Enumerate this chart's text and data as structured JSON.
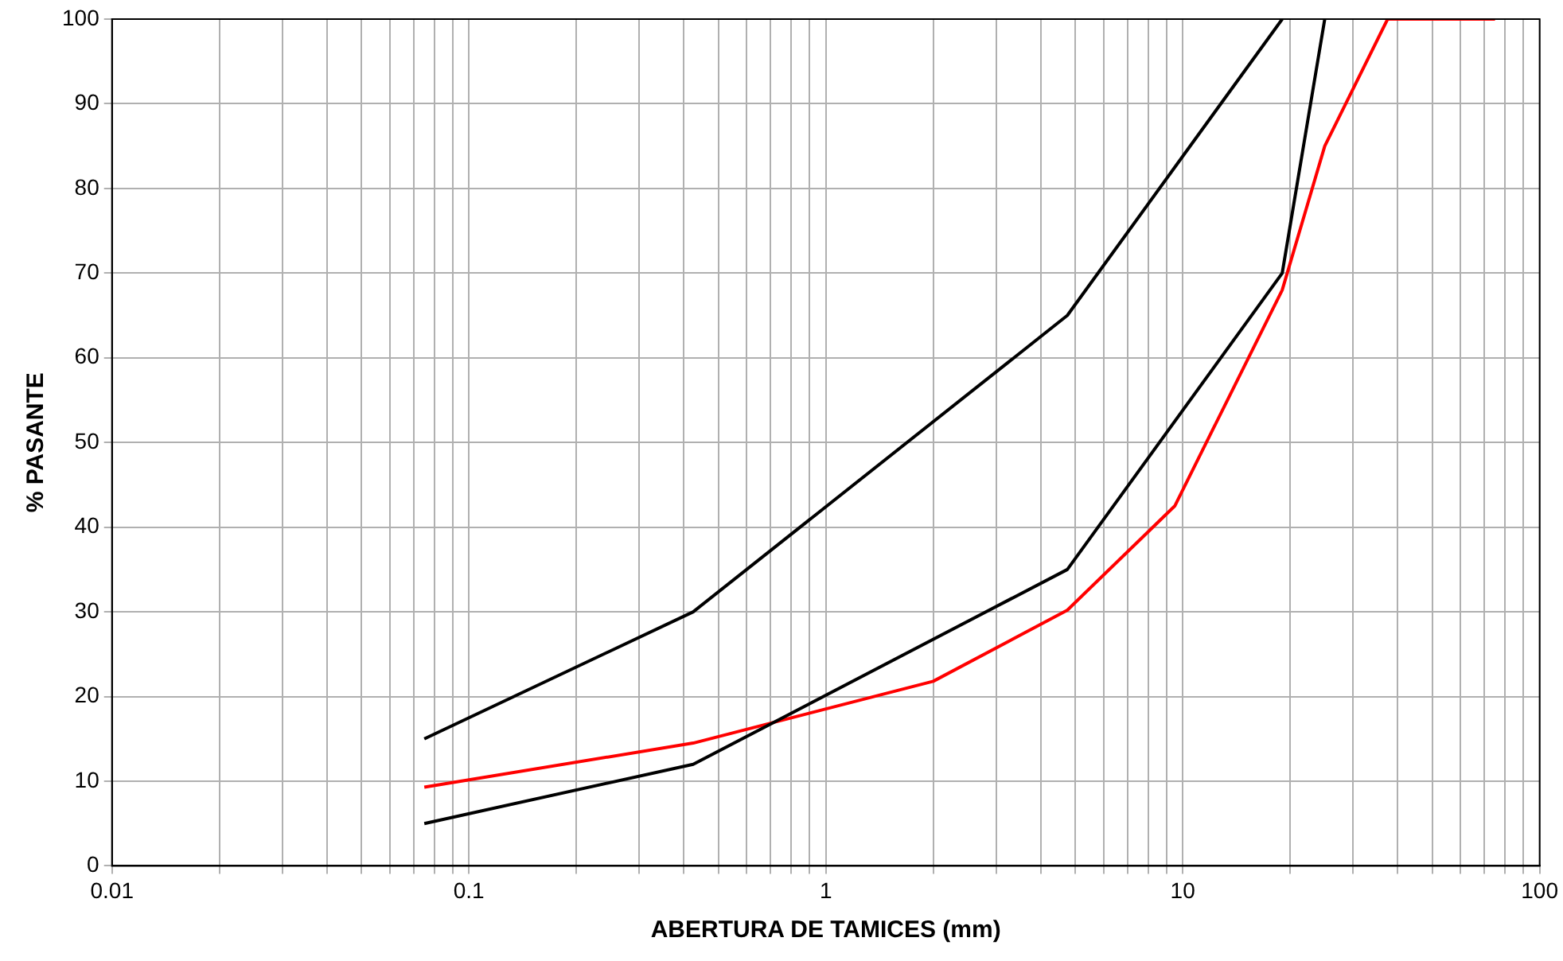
{
  "chart_data": {
    "type": "line",
    "xlabel": "ABERTURA DE TAMICES (mm)",
    "ylabel": "% PASANTE",
    "log": "x",
    "grid": true,
    "legend": false,
    "marker": "none",
    "line_style": "solid",
    "xlim": [
      0.01,
      100
    ],
    "ylim": [
      0,
      100
    ],
    "xticks": [
      0.01,
      {
        "value": 0.02,
        "label": null
      },
      {
        "value": 0.03,
        "label": null
      },
      {
        "value": 0.04,
        "label": null
      },
      {
        "value": 0.05,
        "label": null
      },
      {
        "value": 0.06,
        "label": null
      },
      {
        "value": 0.07,
        "label": null
      },
      {
        "value": 0.08,
        "label": null
      },
      {
        "value": 0.09,
        "label": null
      },
      0.1,
      {
        "value": 0.2,
        "label": null
      },
      {
        "value": 0.3,
        "label": null
      },
      {
        "value": 0.4,
        "label": null
      },
      {
        "value": 0.5,
        "label": null
      },
      {
        "value": 0.6,
        "label": null
      },
      {
        "value": 0.7,
        "label": null
      },
      {
        "value": 0.8,
        "label": null
      },
      {
        "value": 0.9,
        "label": null
      },
      1,
      {
        "value": 2,
        "label": null
      },
      {
        "value": 3,
        "label": null
      },
      {
        "value": 4,
        "label": null
      },
      {
        "value": 5,
        "label": null
      },
      {
        "value": 6,
        "label": null
      },
      {
        "value": 7,
        "label": null
      },
      {
        "value": 8,
        "label": null
      },
      {
        "value": 9,
        "label": null
      },
      10,
      {
        "value": 20,
        "label": null
      },
      {
        "value": 30,
        "label": null
      },
      {
        "value": 40,
        "label": null
      },
      {
        "value": 50,
        "label": null
      },
      {
        "value": 60,
        "label": null
      },
      {
        "value": 70,
        "label": null
      },
      {
        "value": 80,
        "label": null
      },
      {
        "value": 90,
        "label": null
      },
      100
    ],
    "yticks": [
      0,
      10,
      20,
      30,
      40,
      50,
      60,
      70,
      80,
      90,
      100
    ],
    "series": [
      {
        "color": "#000000",
        "x": [
          0.075,
          0.425,
          4.75,
          19
        ],
        "values": [
          15,
          30,
          65,
          100
        ]
      },
      {
        "color": "#000000",
        "x": [
          0.075,
          0.425,
          4.75,
          19,
          25
        ],
        "values": [
          5,
          12,
          35,
          70,
          100
        ]
      },
      {
        "color": "#ff0000",
        "x": [
          0.075,
          0.425,
          2,
          4.75,
          9.5,
          19,
          25,
          37.5,
          75
        ],
        "values": [
          9.3,
          14.5,
          21.8,
          30.2,
          42.5,
          68,
          85,
          100,
          100
        ]
      }
    ]
  }
}
